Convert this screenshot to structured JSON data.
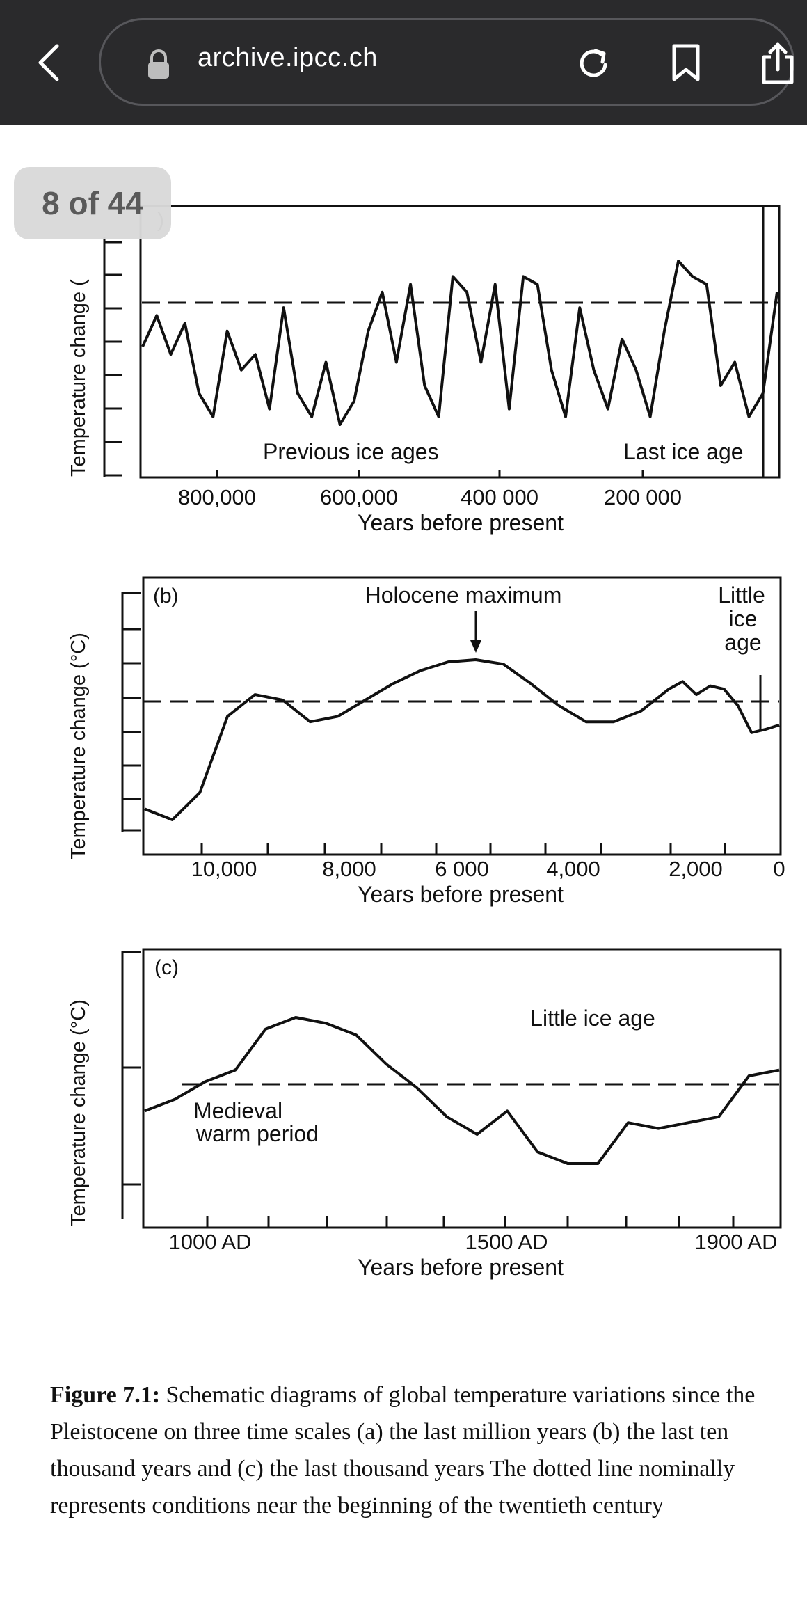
{
  "browser": {
    "url": "archive.ipcc.ch",
    "icons": [
      "back-chevron-icon",
      "lock-icon",
      "reload-icon",
      "bookmark-icon",
      "share-icon"
    ]
  },
  "pager": {
    "label": "8 of 44"
  },
  "panel_a": {
    "tag": ")",
    "ylabel": "Temperature change (",
    "annotations": [
      "Previous ice ages",
      "Last ice age"
    ],
    "xticks": [
      "800,000",
      "600,000",
      "400 000",
      "200 000"
    ],
    "xlabel": "Years before present"
  },
  "panel_b": {
    "tag": "(b)",
    "ylabel": "Temperature change (°C)",
    "annotations": [
      "Holocene maximum",
      "Little",
      "ice",
      "age"
    ],
    "xticks": [
      "10,000",
      "8,000",
      "6 000",
      "4,000",
      "2,000",
      "0"
    ],
    "xlabel": "Years before present"
  },
  "panel_c": {
    "tag": "(c)",
    "ylabel": "Temperature change (°C)",
    "annotations": [
      "Little ice age",
      "Medieval",
      "warm period"
    ],
    "xticks": [
      "1000 AD",
      "1500 AD",
      "1900 AD"
    ],
    "xlabel": "Years before present"
  },
  "caption": {
    "label": "Figure 7.1:",
    "text": "Schematic diagrams of global temperature variations since the Pleistocene on three time scales (a) the last million years (b) the last ten thousand years and (c) the last thousand years The dotted line nominally represents conditions near the beginning of the twentieth century"
  },
  "chart_data": [
    {
      "type": "line",
      "title": "",
      "xlabel": "Years before present",
      "ylabel": "Temperature change (",
      "x_ticks": [
        "800,000",
        "600,000",
        "400 000",
        "200 000"
      ],
      "annotations": [
        "Previous ice ages",
        "Last ice age"
      ],
      "reference_line": "dashed",
      "series": [
        {
          "x": [
            900000,
            880000,
            860000,
            840000,
            820000,
            800000,
            780000,
            760000,
            740000,
            720000,
            700000,
            680000,
            660000,
            640000,
            620000,
            600000,
            580000,
            560000,
            540000,
            520000,
            500000,
            480000,
            460000,
            440000,
            420000,
            400000,
            380000,
            360000,
            340000,
            320000,
            300000,
            280000,
            260000,
            240000,
            220000,
            200000,
            180000,
            160000,
            140000,
            120000,
            100000,
            80000,
            60000,
            40000,
            20000,
            0
          ],
          "y": [
            0.5,
            0.7,
            0.45,
            0.65,
            0.2,
            0.05,
            0.6,
            0.35,
            0.45,
            0.1,
            0.75,
            0.2,
            0.05,
            0.4,
            0.0,
            0.15,
            0.6,
            0.85,
            0.4,
            0.9,
            0.25,
            0.05,
            0.95,
            0.85,
            0.4,
            0.9,
            0.1,
            0.95,
            0.9,
            0.35,
            0.05,
            0.75,
            0.35,
            0.1,
            0.55,
            0.35,
            0.05,
            0.6,
            1.05,
            0.95,
            0.9,
            0.25,
            0.4,
            0.05,
            0.2,
            0.85
          ]
        }
      ]
    },
    {
      "type": "line",
      "title": "",
      "xlabel": "Years before present",
      "ylabel": "Temperature change (°C)",
      "x_ticks": [
        "10,000",
        "8,000",
        "6 000",
        "4,000",
        "2,000",
        "0"
      ],
      "annotations": [
        "Holocene maximum",
        "Little ice age"
      ],
      "reference_line": "dashed",
      "series": [
        {
          "x": [
            11500,
            11000,
            10500,
            10000,
            9500,
            9000,
            8500,
            8000,
            7500,
            7000,
            6500,
            6000,
            5500,
            5000,
            4500,
            4000,
            3500,
            3000,
            2500,
            2000,
            1750,
            1500,
            1250,
            1000,
            750,
            500,
            250,
            0
          ],
          "y": [
            -0.95,
            -1.05,
            -0.8,
            -0.1,
            0.1,
            0.05,
            -0.15,
            -0.1,
            0.05,
            0.2,
            0.32,
            0.4,
            0.42,
            0.38,
            0.2,
            0.0,
            -0.15,
            -0.15,
            -0.05,
            0.15,
            0.22,
            0.1,
            0.18,
            0.15,
            0.0,
            -0.25,
            -0.22,
            -0.18
          ]
        }
      ]
    },
    {
      "type": "line",
      "title": "",
      "xlabel": "Years before present",
      "ylabel": "Temperature change (°C)",
      "x_ticks": [
        "1000 AD",
        "1500 AD",
        "1900 AD"
      ],
      "annotations": [
        "Little ice age",
        "Medieval warm period"
      ],
      "reference_line": "dashed",
      "series": [
        {
          "x": [
            900,
            950,
            1000,
            1050,
            1100,
            1150,
            1200,
            1250,
            1300,
            1350,
            1400,
            1450,
            1500,
            1550,
            1600,
            1650,
            1700,
            1750,
            1800,
            1850,
            1900,
            1950
          ],
          "y": [
            -0.2,
            -0.1,
            0.05,
            0.15,
            0.5,
            0.6,
            0.55,
            0.45,
            0.2,
            0.0,
            -0.25,
            -0.4,
            -0.2,
            -0.55,
            -0.65,
            -0.65,
            -0.3,
            -0.35,
            -0.3,
            -0.25,
            0.1,
            0.15
          ]
        }
      ]
    }
  ]
}
